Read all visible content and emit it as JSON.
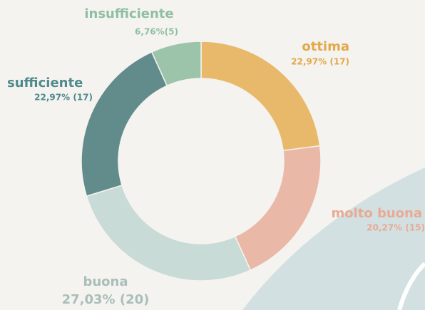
{
  "chart_data": {
    "type": "pie",
    "categories": [
      "ottima",
      "molto buona",
      "buona",
      "sufficiente",
      "insufficiente"
    ],
    "values": [
      17,
      15,
      20,
      17,
      5
    ],
    "value_labels": [
      "22,97% (17)",
      "20,27% (15)",
      "27,03% (20)",
      "22,97% (17)",
      "6,76%(5)"
    ],
    "colors": [
      "#e8b96b",
      "#e9b8a7",
      "#c9dbd6",
      "#628c8c",
      "#9bc4ab"
    ]
  }
}
